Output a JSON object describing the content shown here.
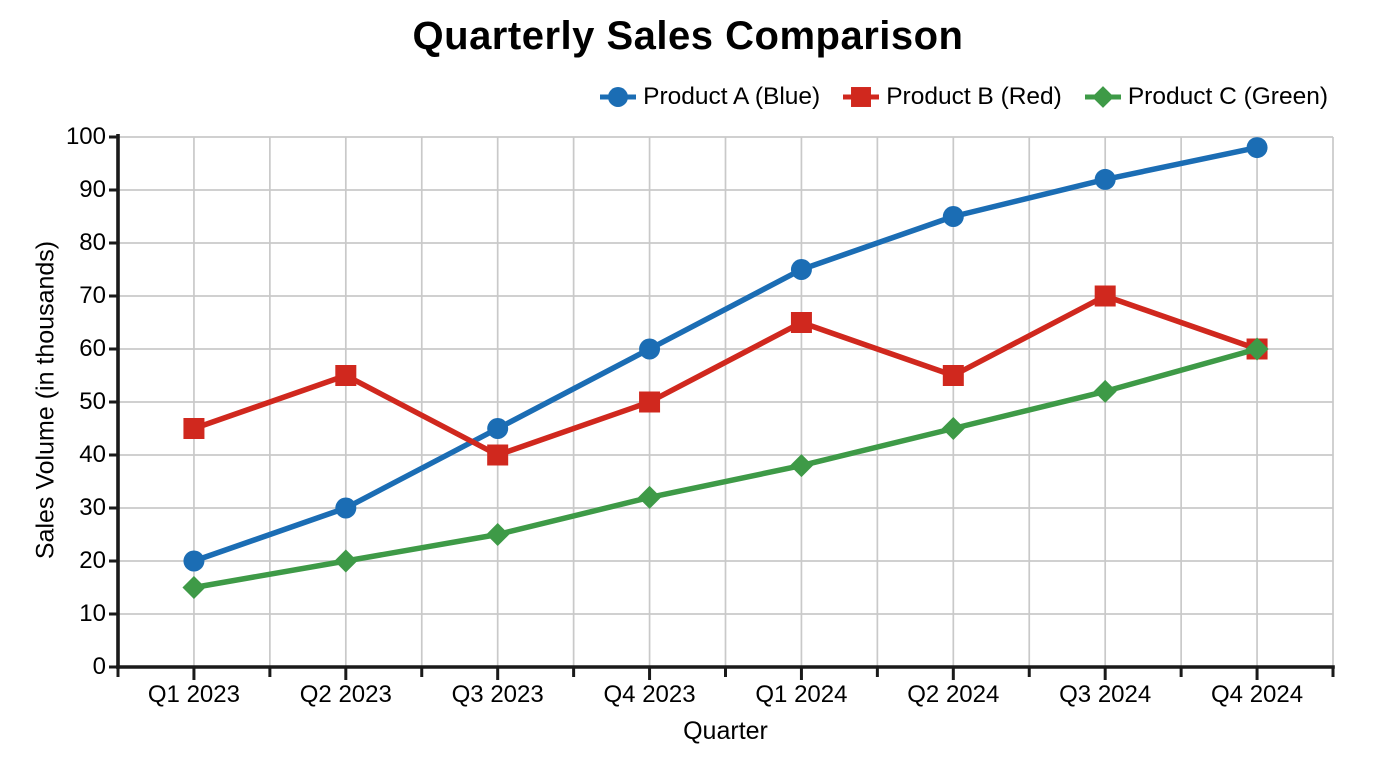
{
  "title": "Quarterly Sales Comparison",
  "colors": {
    "axis": "#1a1a1a",
    "grid": "#c9c9c9",
    "text": "#000000",
    "background": "#ffffff",
    "blue": "#1b6db4",
    "red": "#d0281e",
    "green": "#3e9a47"
  },
  "legend": {
    "position": "top-right",
    "items": [
      {
        "label": "Product A (Blue)",
        "marker": "circle",
        "color": "#1b6db4"
      },
      {
        "label": "Product B (Red)",
        "marker": "square",
        "color": "#d0281e"
      },
      {
        "label": "Product C (Green)",
        "marker": "diamond",
        "color": "#3e9a47"
      }
    ]
  },
  "chart_data": {
    "type": "line",
    "title": "Quarterly Sales Comparison",
    "xlabel": "Quarter",
    "ylabel": "Sales Volume (in thousands)",
    "categories": [
      "Q1 2023",
      "Q2 2023",
      "Q3 2023",
      "Q4 2023",
      "Q1 2024",
      "Q2 2024",
      "Q3 2024",
      "Q4 2024"
    ],
    "series": [
      {
        "name": "Product A (Blue)",
        "marker": "circle",
        "color": "#1b6db4",
        "values": [
          20,
          30,
          45,
          60,
          75,
          85,
          92,
          98
        ]
      },
      {
        "name": "Product B (Red)",
        "marker": "square",
        "color": "#d0281e",
        "values": [
          45,
          55,
          40,
          50,
          65,
          55,
          70,
          60
        ]
      },
      {
        "name": "Product C (Green)",
        "marker": "diamond",
        "color": "#3e9a47",
        "values": [
          15,
          20,
          25,
          32,
          38,
          45,
          52,
          60
        ]
      }
    ],
    "ylim": [
      0,
      100
    ],
    "y_tick_step": 10,
    "grid": true,
    "legend_position": "top-right"
  }
}
